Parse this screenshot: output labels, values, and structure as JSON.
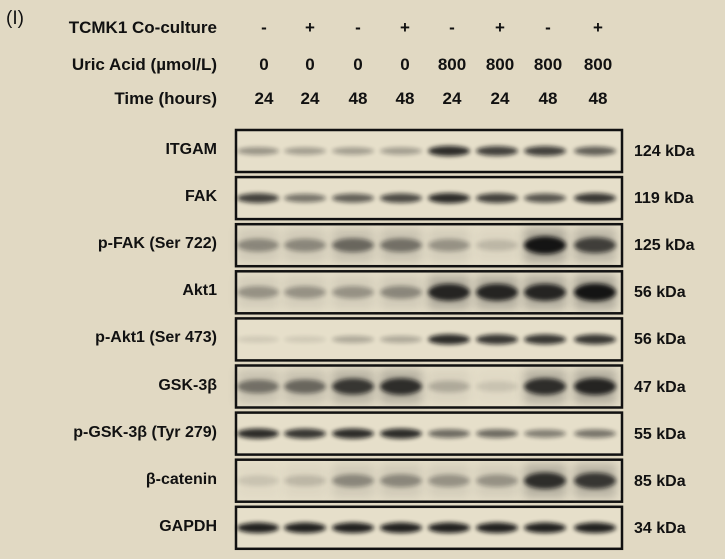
{
  "panel_label": "(I)",
  "conditions": [
    {
      "label": "TCMK1 Co-culture",
      "values": [
        "-",
        "+",
        "-",
        "+",
        "-",
        "+",
        "-",
        "+"
      ]
    },
    {
      "label": "Uric Acid (µmol/L)",
      "values": [
        "0",
        "0",
        "0",
        "0",
        "800",
        "800",
        "800",
        "800"
      ]
    },
    {
      "label": "Time (hours)",
      "values": [
        "24",
        "24",
        "48",
        "48",
        "24",
        "24",
        "48",
        "48"
      ]
    }
  ],
  "blots": [
    {
      "protein": "ITGAM",
      "size": "124 kDa",
      "band_intensity": [
        0.35,
        0.3,
        0.3,
        0.3,
        0.85,
        0.75,
        0.75,
        0.6
      ]
    },
    {
      "protein": "FAK",
      "size": "119 kDa",
      "band_intensity": [
        0.75,
        0.5,
        0.6,
        0.7,
        0.85,
        0.75,
        0.65,
        0.8
      ]
    },
    {
      "protein": "p-FAK (Ser 722)",
      "size": "125 kDa",
      "band_intensity": [
        0.35,
        0.35,
        0.5,
        0.45,
        0.3,
        0.15,
        0.95,
        0.7
      ]
    },
    {
      "protein": "Akt1",
      "size": "56 kDa",
      "band_intensity": [
        0.3,
        0.3,
        0.3,
        0.35,
        0.85,
        0.85,
        0.85,
        0.95
      ]
    },
    {
      "protein": "p-Akt1 (Ser 473)",
      "size": "56 kDa",
      "band_intensity": [
        0.1,
        0.1,
        0.25,
        0.25,
        0.85,
        0.8,
        0.8,
        0.8
      ]
    },
    {
      "protein": "GSK-3β",
      "size": "47 kDa",
      "band_intensity": [
        0.45,
        0.5,
        0.75,
        0.8,
        0.2,
        0.1,
        0.8,
        0.85
      ]
    },
    {
      "protein": "p-GSK-3β (Tyr 279)",
      "size": "55 kDa",
      "band_intensity": [
        0.85,
        0.8,
        0.85,
        0.85,
        0.55,
        0.55,
        0.45,
        0.5
      ]
    },
    {
      "protein": "β-catenin",
      "size": "85 kDa",
      "band_intensity": [
        0.1,
        0.15,
        0.35,
        0.35,
        0.3,
        0.3,
        0.8,
        0.75
      ]
    },
    {
      "protein": "GAPDH",
      "size": "34 kDa",
      "band_intensity": [
        0.9,
        0.9,
        0.9,
        0.9,
        0.9,
        0.9,
        0.9,
        0.9
      ]
    }
  ],
  "colors": {
    "background": "#e1d9c3",
    "membrane": "#e6dfca",
    "band": "#111111"
  }
}
